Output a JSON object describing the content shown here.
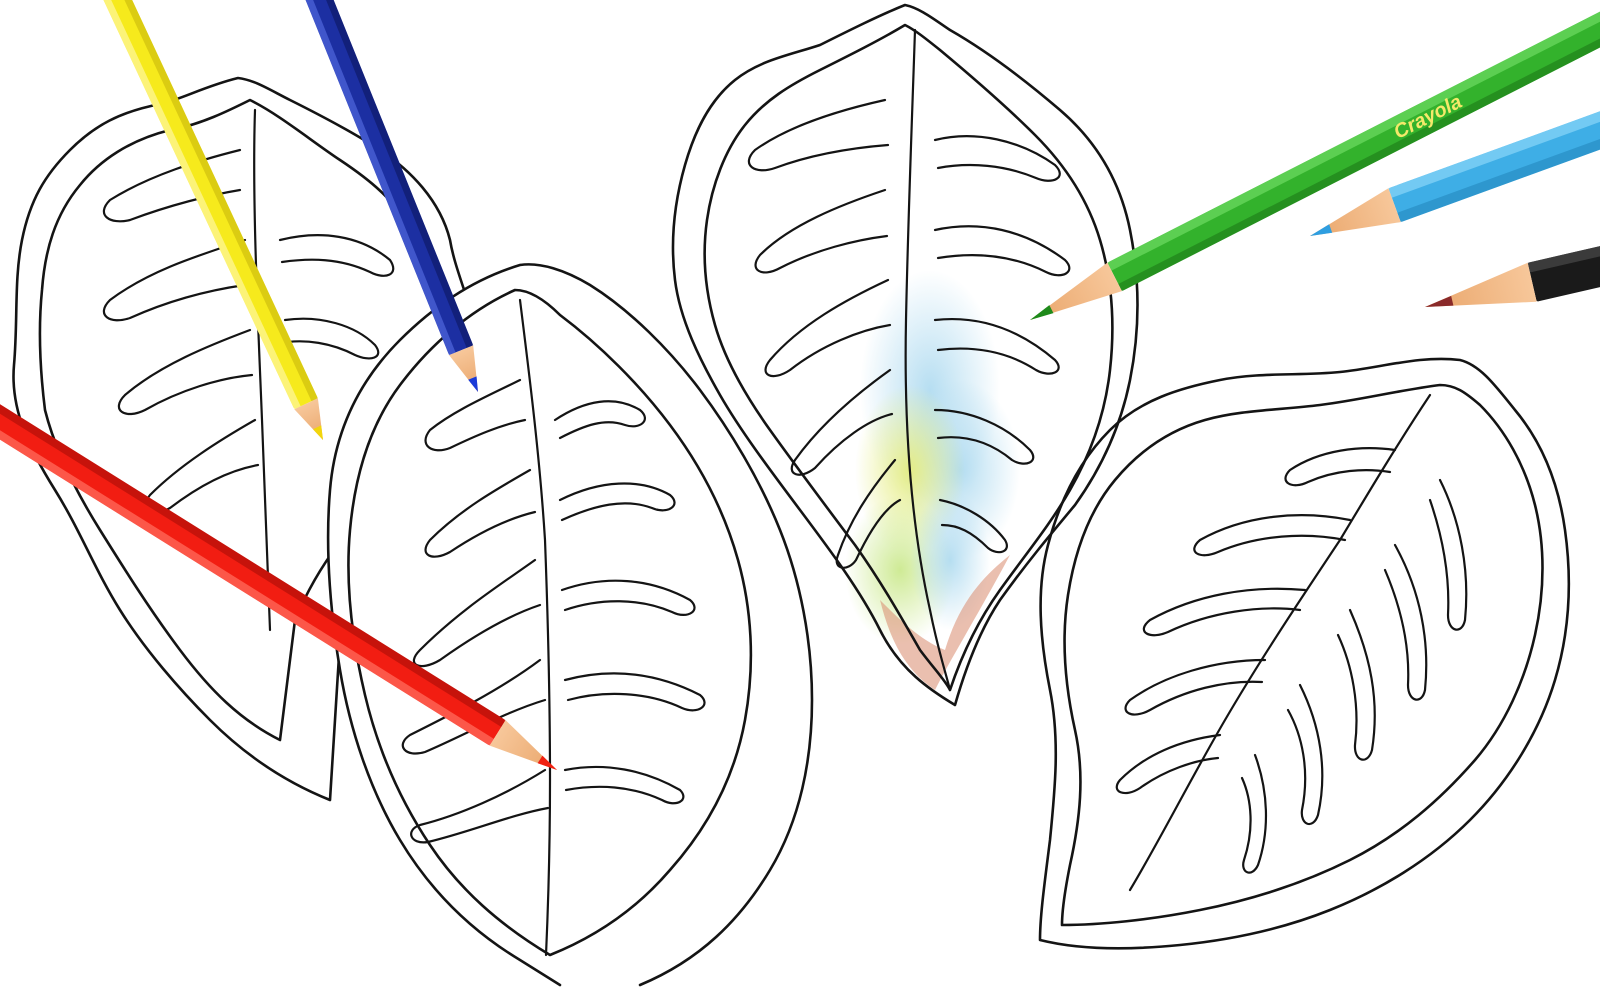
{
  "scene": {
    "paper_color": "#ffffff",
    "line_color": "#141414"
  },
  "leaves": [
    {
      "name": "leaf-top-left",
      "style": "outline"
    },
    {
      "name": "leaf-bottom-left",
      "style": "outline"
    },
    {
      "name": "leaf-center",
      "style": "partially-colored"
    },
    {
      "name": "leaf-right",
      "style": "outline"
    }
  ],
  "coloring_on_center_leaf": {
    "colors": [
      "#a9d8ef",
      "#e4ec7a",
      "#c9e889",
      "#d98a6e"
    ]
  },
  "pencils": [
    {
      "name": "red-pencil",
      "color": "#f21d12"
    },
    {
      "name": "yellow-pencil",
      "color": "#f6ea1c"
    },
    {
      "name": "blue-pencil",
      "color": "#1c2fa2"
    },
    {
      "name": "green-pencil",
      "color": "#33b22c",
      "brand": "Crayola"
    },
    {
      "name": "light-blue-pencil",
      "color": "#3eaee6"
    },
    {
      "name": "black-pencil",
      "color": "#1a1a1a"
    }
  ]
}
